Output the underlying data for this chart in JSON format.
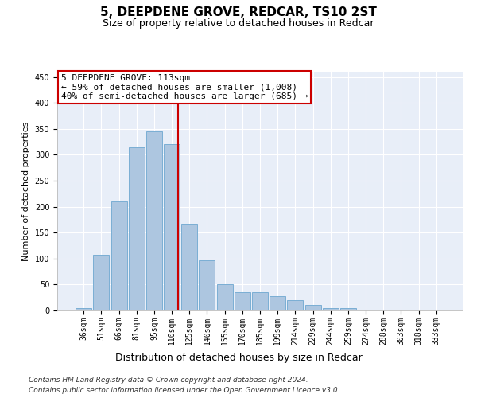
{
  "title": "5, DEEPDENE GROVE, REDCAR, TS10 2ST",
  "subtitle": "Size of property relative to detached houses in Redcar",
  "xlabel": "Distribution of detached houses by size in Redcar",
  "ylabel": "Number of detached properties",
  "categories": [
    "36sqm",
    "51sqm",
    "66sqm",
    "81sqm",
    "95sqm",
    "110sqm",
    "125sqm",
    "140sqm",
    "155sqm",
    "170sqm",
    "185sqm",
    "199sqm",
    "214sqm",
    "229sqm",
    "244sqm",
    "259sqm",
    "274sqm",
    "288sqm",
    "303sqm",
    "318sqm",
    "333sqm"
  ],
  "values": [
    5,
    107,
    210,
    315,
    345,
    320,
    165,
    97,
    50,
    35,
    35,
    27,
    20,
    10,
    5,
    4,
    2,
    1,
    1,
    0,
    0
  ],
  "bar_color": "#adc6e0",
  "bar_edge_color": "#7aaed4",
  "background_color": "#e8eef8",
  "grid_color": "#ffffff",
  "vline_color": "#cc0000",
  "vline_pos": 5.35,
  "annotation_line1": "5 DEEPDENE GROVE: 113sqm",
  "annotation_line2": "← 59% of detached houses are smaller (1,008)",
  "annotation_line3": "40% of semi-detached houses are larger (685) →",
  "annotation_box_color": "#cc0000",
  "footer_line1": "Contains HM Land Registry data © Crown copyright and database right 2024.",
  "footer_line2": "Contains public sector information licensed under the Open Government Licence v3.0.",
  "ylim": [
    0,
    460
  ],
  "yticks": [
    0,
    50,
    100,
    150,
    200,
    250,
    300,
    350,
    400,
    450
  ],
  "title_fontsize": 11,
  "subtitle_fontsize": 9,
  "xlabel_fontsize": 9,
  "ylabel_fontsize": 8,
  "tick_fontsize": 7,
  "footer_fontsize": 6.5,
  "annotation_fontsize": 8
}
